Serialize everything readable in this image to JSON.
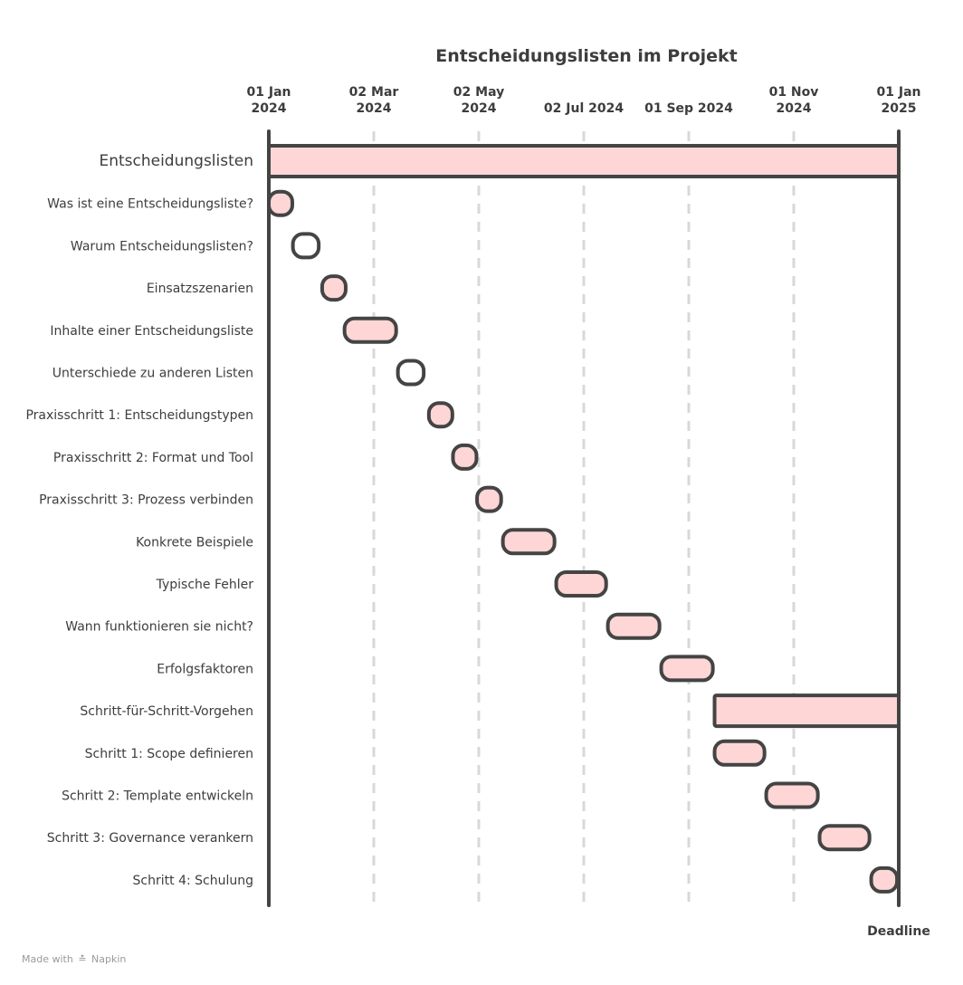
{
  "chart_data": {
    "type": "gantt",
    "title": "Entscheidungslisten im Projekt",
    "x_axis": {
      "min": "2024-01-01",
      "max": "2025-01-01",
      "ticks": [
        {
          "date": "2024-01-01",
          "line1": "01 Jan",
          "line2": "2024"
        },
        {
          "date": "2024-03-02",
          "line1": "02 Mar",
          "line2": "2024"
        },
        {
          "date": "2024-05-02",
          "line1": "02 May",
          "line2": "2024"
        },
        {
          "date": "2024-07-02",
          "line1": "02 Jul 2024",
          "line2": ""
        },
        {
          "date": "2024-09-01",
          "line1": "01 Sep 2024",
          "line2": ""
        },
        {
          "date": "2024-11-01",
          "line1": "01 Nov",
          "line2": "2024"
        },
        {
          "date": "2025-01-01",
          "line1": "01 Jan",
          "line2": "2025"
        }
      ]
    },
    "deadline": {
      "date": "2025-01-01",
      "label": "Deadline"
    },
    "tasks": [
      {
        "label": "Entscheidungslisten",
        "start": "2024-01-01",
        "end": "2025-01-01",
        "summary": true,
        "fill": true
      },
      {
        "label": "Was ist eine Entscheidungsliste?",
        "start": "2024-01-01",
        "end": "2024-01-14",
        "fill": true
      },
      {
        "label": "Warum Entscheidungslisten?",
        "start": "2024-01-15",
        "end": "2024-01-30",
        "fill": false
      },
      {
        "label": "Einsatzszenarien",
        "start": "2024-02-01",
        "end": "2024-02-13",
        "fill": true
      },
      {
        "label": "Inhalte einer Entscheidungsliste",
        "start": "2024-02-14",
        "end": "2024-03-15",
        "fill": true
      },
      {
        "label": "Unterschiede zu anderen Listen",
        "start": "2024-03-16",
        "end": "2024-03-31",
        "fill": false
      },
      {
        "label": "Praxisschritt 1: Entscheidungstypen",
        "start": "2024-04-03",
        "end": "2024-04-16",
        "fill": true
      },
      {
        "label": "Praxisschritt 2: Format und Tool",
        "start": "2024-04-17",
        "end": "2024-04-30",
        "fill": true
      },
      {
        "label": "Praxisschritt 3: Prozess verbinden",
        "start": "2024-05-01",
        "end": "2024-05-15",
        "fill": true
      },
      {
        "label": "Konkrete Beispiele",
        "start": "2024-05-16",
        "end": "2024-06-15",
        "fill": true
      },
      {
        "label": "Typische Fehler",
        "start": "2024-06-16",
        "end": "2024-07-15",
        "fill": true
      },
      {
        "label": "Wann funktionieren sie nicht?",
        "start": "2024-07-16",
        "end": "2024-08-15",
        "fill": true
      },
      {
        "label": "Erfolgsfaktoren",
        "start": "2024-08-16",
        "end": "2024-09-15",
        "fill": true
      },
      {
        "label": "Schritt-für-Schritt-Vorgehen",
        "start": "2024-09-16",
        "end": "2025-01-01",
        "summary": true,
        "fill": true
      },
      {
        "label": "Schritt 1: Scope definieren",
        "start": "2024-09-16",
        "end": "2024-10-15",
        "fill": true
      },
      {
        "label": "Schritt 2: Template entwickeln",
        "start": "2024-10-16",
        "end": "2024-11-15",
        "fill": true
      },
      {
        "label": "Schritt 3: Governance verankern",
        "start": "2024-11-16",
        "end": "2024-12-15",
        "fill": true
      },
      {
        "label": "Schritt 4: Schulung",
        "start": "2024-12-16",
        "end": "2024-12-31",
        "fill": true
      }
    ],
    "colors": {
      "fill": "#ffd6d6",
      "stroke": "#444444",
      "grid": "#d8d8d8",
      "text": "#3d3d3d"
    }
  },
  "footer": {
    "made_with": "Made with",
    "brand": "Napkin",
    "brand_icon": "napkin-logo-icon"
  }
}
